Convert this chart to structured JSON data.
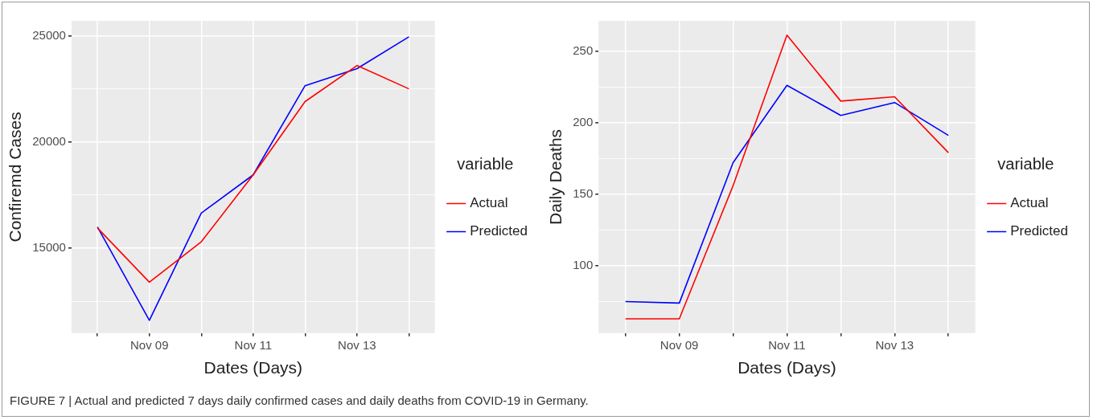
{
  "chart_data": [
    {
      "type": "line",
      "xlabel": "Dates (Days)",
      "ylabel": "Confiremd Cases",
      "legend_title": "variable",
      "legend": "right",
      "grid": true,
      "marker": "none",
      "line_style": "solid",
      "categories": [
        null,
        "Nov 09",
        null,
        "Nov 11",
        null,
        "Nov 13",
        null
      ],
      "ylim": [
        11000,
        25700
      ],
      "yticks": [
        {
          "value": 12500,
          "label": null
        },
        15000,
        {
          "value": 17500,
          "label": null
        },
        20000,
        {
          "value": 22500,
          "label": null
        },
        25000
      ],
      "series": [
        {
          "name": "Actual",
          "color": "#ff0000",
          "values": [
            15950,
            13400,
            15300,
            18450,
            21900,
            23600,
            22500
          ]
        },
        {
          "name": "Predicted",
          "color": "#0000ff",
          "values": [
            16000,
            11600,
            16650,
            18450,
            22650,
            23450,
            24950
          ]
        }
      ],
      "annotations": [
        "FIGURE 7 | Actual and predicted 7 days daily confirmed cases and daily deaths from COVID-19 in Germany."
      ]
    },
    {
      "type": "line",
      "xlabel": "Dates (Days)",
      "ylabel": "Daily Deaths",
      "legend_title": "variable",
      "legend": "right",
      "grid": true,
      "marker": "none",
      "line_style": "solid",
      "categories": [
        null,
        "Nov 09",
        null,
        "Nov 11",
        null,
        "Nov 13",
        null
      ],
      "ylim": [
        53,
        271
      ],
      "yticks": [
        {
          "value": 75,
          "label": null
        },
        100,
        {
          "value": 125,
          "label": null
        },
        150,
        {
          "value": 175,
          "label": null
        },
        200,
        {
          "value": 225,
          "label": null
        },
        250
      ],
      "series": [
        {
          "name": "Actual",
          "color": "#ff0000",
          "values": [
            63,
            63,
            156,
            261,
            215,
            218,
            179
          ]
        },
        {
          "name": "Predicted",
          "color": "#0000ff",
          "values": [
            75,
            74,
            172,
            226,
            205,
            214,
            191
          ]
        }
      ]
    }
  ]
}
